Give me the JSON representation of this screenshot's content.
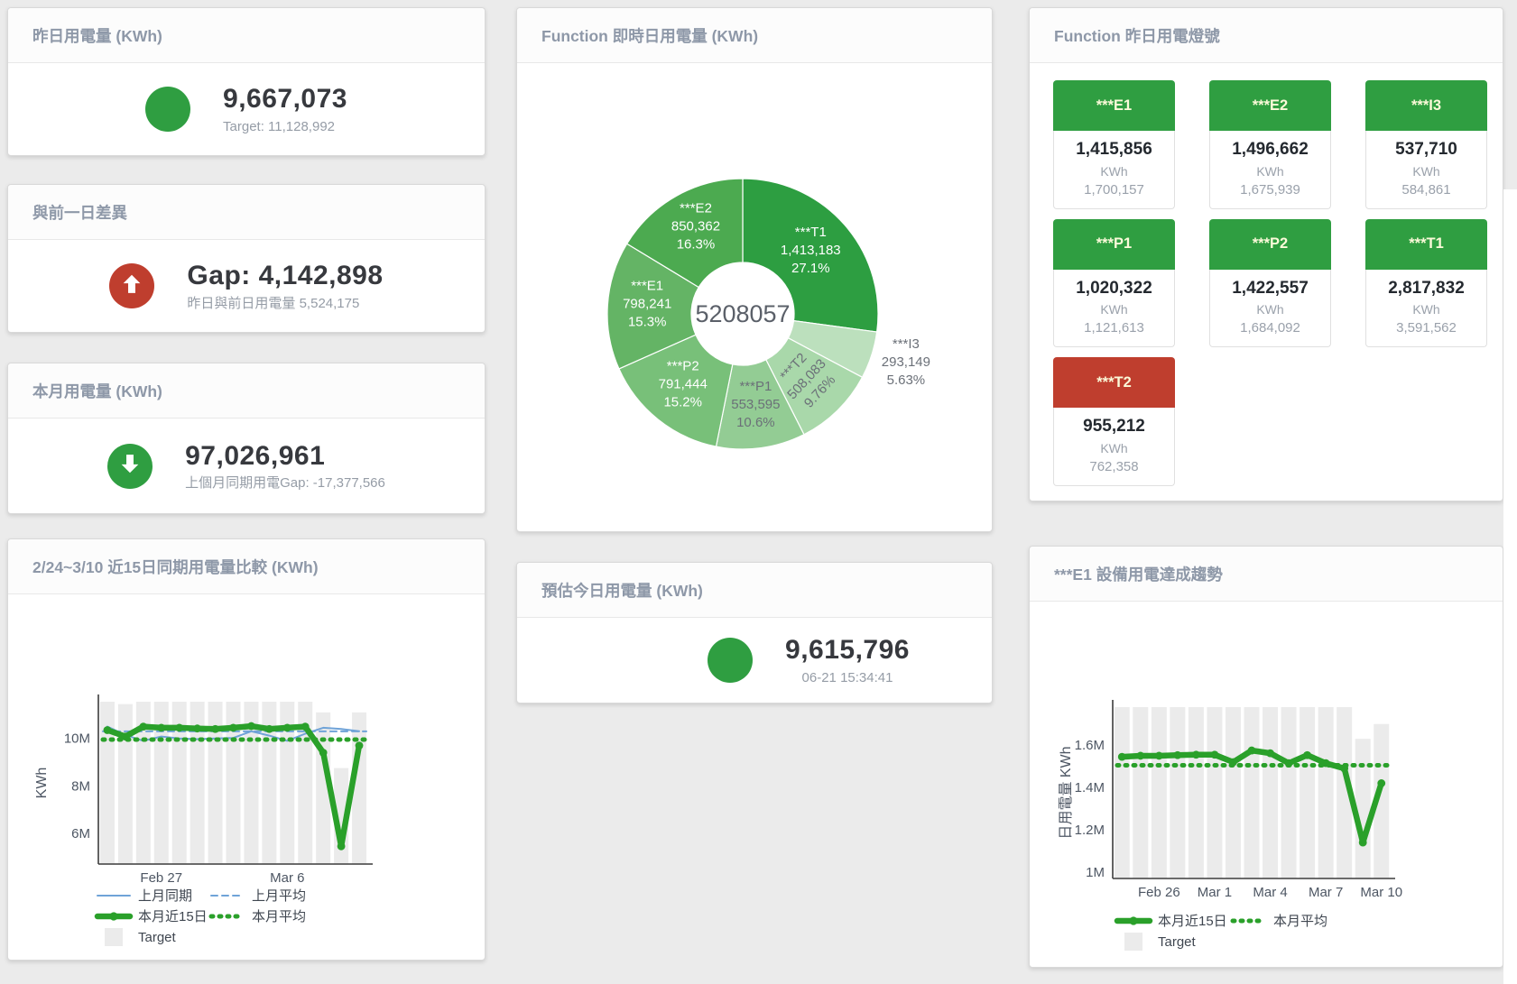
{
  "page": {
    "bg": "#ebebeb"
  },
  "colors": {
    "green": "#2f9e41",
    "red": "#bf3e2e",
    "blue": "#6fa3d8",
    "chart_green": "#2aa02a",
    "bar": "#ebebeb",
    "axis": "#3c3c3c",
    "tick_text": "#4d5663",
    "tile_label": "#fbfad9"
  },
  "cards": {
    "yesterday": {
      "title": "昨日用電量 (KWh)",
      "value": "9,667,073",
      "sub": "Target: 11,128,992",
      "status": "green"
    },
    "diff": {
      "title": "與前一日差異",
      "value": "Gap: 4,142,898",
      "sub": "昨日與前日用電量 5,524,175",
      "status": "red",
      "arrow": "up"
    },
    "month": {
      "title": "本月用電量 (KWh)",
      "value": "97,026,961",
      "sub": "上個月同期用電Gap: -17,377,566",
      "status": "green",
      "arrow": "down"
    },
    "estimate": {
      "title": "預估今日用電量 (KWh)",
      "value": "9,615,796",
      "sub": "06-21 15:34:41",
      "status": "green"
    }
  },
  "lights": {
    "title": "Function 昨日用電燈號",
    "unit": "KWh",
    "tiles": [
      {
        "label": "***E1",
        "value": "1,415,856",
        "target": "1,700,157",
        "status": "green"
      },
      {
        "label": "***E2",
        "value": "1,496,662",
        "target": "1,675,939",
        "status": "green"
      },
      {
        "label": "***I3",
        "value": "537,710",
        "target": "584,861",
        "status": "green"
      },
      {
        "label": "***P1",
        "value": "1,020,322",
        "target": "1,121,613",
        "status": "green"
      },
      {
        "label": "***P2",
        "value": "1,422,557",
        "target": "1,684,092",
        "status": "green"
      },
      {
        "label": "***T1",
        "value": "2,817,832",
        "target": "3,591,562",
        "status": "green"
      },
      {
        "label": "***T2",
        "value": "955,212",
        "target": "762,358",
        "status": "red"
      }
    ]
  },
  "chart_data": [
    {
      "id": "donut",
      "type": "pie",
      "title": "Function 即時日用電量 (KWh)",
      "center_label": "5208057",
      "slices": [
        {
          "name": "***T1",
          "v": 1413183,
          "value": "1,413,183",
          "pct": "27.1%",
          "color": "#2d9e41",
          "label": "inside",
          "label_color": "#ffffff"
        },
        {
          "name": "***I3",
          "v": 293149,
          "value": "293,149",
          "pct": "5.63%",
          "color": "#bce0bd",
          "label": "outside",
          "label_color": "#6b7078"
        },
        {
          "name": "***T2",
          "v": 508083,
          "value": "508,083",
          "pct": "9.76%",
          "color": "#a9d8aa",
          "label": "inside",
          "label_color": "#6b7078",
          "rotate": -47
        },
        {
          "name": "***P1",
          "v": 553595,
          "value": "553,595",
          "pct": "10.6%",
          "color": "#93cc94",
          "label": "inside",
          "label_color": "#6b7078"
        },
        {
          "name": "***P2",
          "v": 791444,
          "value": "791,444",
          "pct": "15.2%",
          "color": "#78c079",
          "label": "inside",
          "label_color": "#ffffff"
        },
        {
          "name": "***E1",
          "v": 798241,
          "value": "798,241",
          "pct": "15.3%",
          "color": "#64b465",
          "label": "inside",
          "label_color": "#ffffff"
        },
        {
          "name": "***E2",
          "v": 850362,
          "value": "850,362",
          "pct": "16.3%",
          "color": "#4caa50",
          "label": "inside",
          "label_color": "#ffffff"
        }
      ]
    },
    {
      "id": "compare15",
      "type": "line+bar",
      "title": "2/24~3/10 近15日同期用電量比較 (KWh)",
      "ylabel": "KWh",
      "ylim": [
        4.7,
        11.55
      ],
      "unit_scale": "millions of KWh",
      "yticks": [
        {
          "v": 6,
          "label": "6M"
        },
        {
          "v": 8,
          "label": "8M"
        },
        {
          "v": 10,
          "label": "10M"
        }
      ],
      "x": 15,
      "x_dates": [
        "2/24",
        "2/25",
        "2/26",
        "2/27",
        "2/28",
        "3/1",
        "3/2",
        "3/3",
        "3/4",
        "3/5",
        "3/6",
        "3/7",
        "3/8",
        "3/9",
        "3/10"
      ],
      "xticks": [
        {
          "i": 3,
          "label": "Feb 27"
        },
        {
          "i": 10,
          "label": "Mar 6"
        }
      ],
      "target": {
        "name": "Target",
        "color": "#ebebeb",
        "values": [
          11.6,
          11.45,
          11.6,
          11.6,
          11.6,
          11.6,
          11.6,
          11.6,
          11.6,
          11.6,
          11.6,
          11.6,
          11.1,
          8.75,
          11.1
        ]
      },
      "series": [
        {
          "name": "上月同期",
          "color": "#6fa3d8",
          "width": 2,
          "style": "solid",
          "values": [
            10.5,
            10.15,
            9.9,
            10.08,
            10.0,
            9.97,
            10.0,
            10.02,
            10.3,
            10.12,
            9.9,
            10.2,
            10.45,
            10.4,
            10.3
          ]
        },
        {
          "name": "上月平均",
          "color": "#6fa3d8",
          "width": 2,
          "style": "dashed",
          "avg": 10.3
        },
        {
          "name": "本月近15日",
          "color": "#2aa02a",
          "width": 6.5,
          "style": "solid",
          "markers": true,
          "values": [
            10.35,
            10.08,
            10.5,
            10.45,
            10.45,
            10.42,
            10.4,
            10.45,
            10.52,
            10.4,
            10.45,
            10.5,
            9.4,
            5.45,
            9.7
          ]
        },
        {
          "name": "本月平均",
          "color": "#2aa02a",
          "width": 5,
          "style": "dotted",
          "avg": 9.95
        }
      ]
    },
    {
      "id": "e1trend",
      "type": "line+bar",
      "title": "***E1 設備用電達成趨勢",
      "ylabel": "日用電量 KWh",
      "ylim": [
        0.97,
        1.78
      ],
      "unit_scale": "millions of KWh",
      "yticks": [
        {
          "v": 1,
          "label": "1M"
        },
        {
          "v": 1.2,
          "label": "1.2M"
        },
        {
          "v": 1.4,
          "label": "1.4M"
        },
        {
          "v": 1.6,
          "label": "1.6M"
        }
      ],
      "x": 15,
      "x_dates": [
        "2/24",
        "2/25",
        "2/26",
        "2/27",
        "2/28",
        "3/1",
        "3/2",
        "3/3",
        "3/4",
        "3/5",
        "3/6",
        "3/7",
        "3/8",
        "3/9",
        "3/10"
      ],
      "xticks": [
        {
          "i": 2,
          "label": "Feb 26"
        },
        {
          "i": 5,
          "label": "Mar 1"
        },
        {
          "i": 8,
          "label": "Mar 4"
        },
        {
          "i": 11,
          "label": "Mar 7"
        },
        {
          "i": 14,
          "label": "Mar 10"
        }
      ],
      "target": {
        "name": "Target",
        "color": "#ebebeb",
        "values": [
          1.9,
          1.9,
          1.9,
          1.9,
          1.9,
          1.9,
          1.9,
          1.9,
          1.9,
          1.9,
          1.9,
          1.9,
          1.9,
          1.63,
          1.7
        ]
      },
      "series": [
        {
          "name": "本月近15日",
          "color": "#2aa02a",
          "width": 6.5,
          "style": "solid",
          "markers": true,
          "values": [
            1.545,
            1.55,
            1.55,
            1.553,
            1.555,
            1.555,
            1.52,
            1.575,
            1.562,
            1.515,
            1.553,
            1.515,
            1.49,
            1.14,
            1.42
          ]
        },
        {
          "name": "本月平均",
          "color": "#2aa02a",
          "width": 5,
          "style": "dotted",
          "avg": 1.505
        }
      ]
    }
  ]
}
